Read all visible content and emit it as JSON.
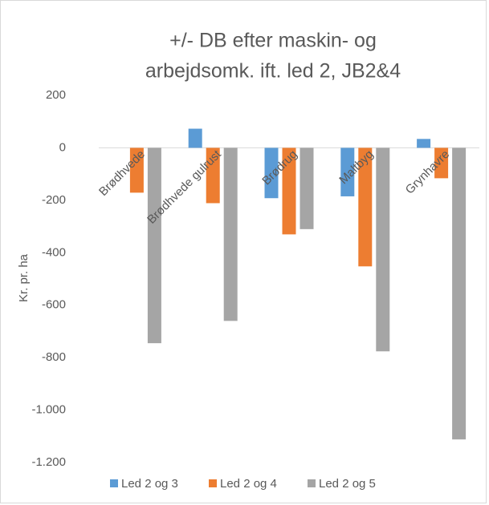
{
  "chart_data": {
    "type": "bar",
    "title": [
      "+/- DB efter maskin- og",
      "arbejdsomk. ift. led 2, JB2&4"
    ],
    "y_label": "Kr. pr. ha",
    "categories": [
      "Brødhvede",
      "Brødhvede gulrust",
      "Brødrug",
      "Maltbyg",
      "Grynhavre"
    ],
    "series": [
      {
        "name": "Led 2 og 3",
        "color": "#5b9bd5",
        "values": [
          null,
          73,
          -192,
          -185,
          34
        ]
      },
      {
        "name": "Led 2 og 4",
        "color": "#ed7d31",
        "values": [
          -171,
          -211,
          -330,
          -452,
          -116
        ]
      },
      {
        "name": "Led 2 og 5",
        "color": "#a5a5a5",
        "values": [
          -745,
          -660,
          -310,
          -776,
          -1112
        ]
      }
    ],
    "ylim": [
      -1200,
      200
    ],
    "yticks": [
      200,
      0,
      -200,
      -400,
      -600,
      -800,
      {
        "value": -1000,
        "label": "-1.000"
      },
      {
        "value": -1200,
        "label": "-1.200"
      }
    ],
    "grid": false,
    "legend": "bottom"
  }
}
